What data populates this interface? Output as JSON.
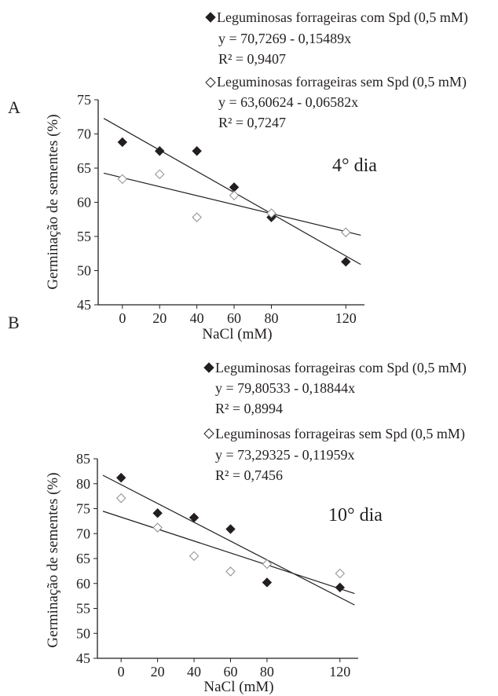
{
  "chart_data": [
    {
      "type": "scatter",
      "panel_label": "A",
      "annotation": "4° dia",
      "xlabel": "NaCl (mM)",
      "ylabel": "Germinação de sementes (%)",
      "x_ticks": [
        "0",
        "20",
        "40",
        "60",
        "80",
        "120"
      ],
      "y_ticks": [
        "45",
        "50",
        "55",
        "60",
        "65",
        "70",
        "75"
      ],
      "xlim": [
        -13,
        130
      ],
      "ylim": [
        45,
        75
      ],
      "grid": false,
      "legend_position": "top-right",
      "series": [
        {
          "name": "Leguminosas forrageiras com Spd (0,5 mM)",
          "marker": "filled-diamond",
          "equation": "y = 70,7269 - 0,15489x",
          "r2": "R² = 0,9407",
          "fit": {
            "intercept": 70.7269,
            "slope": -0.15489
          },
          "x": [
            0,
            20,
            40,
            60,
            80,
            120
          ],
          "y": [
            68.8,
            67.5,
            67.5,
            62.2,
            57.8,
            51.3
          ]
        },
        {
          "name": "Leguminosas forrageiras sem Spd (0,5 mM)",
          "marker": "open-diamond",
          "equation": "y = 63,60624 - 0,06582x",
          "r2": "R² = 0,7247",
          "fit": {
            "intercept": 63.60624,
            "slope": -0.06582
          },
          "x": [
            0,
            20,
            40,
            60,
            80,
            120
          ],
          "y": [
            63.4,
            64.1,
            57.8,
            61.0,
            58.4,
            55.6
          ]
        }
      ]
    },
    {
      "type": "scatter",
      "panel_label": "B",
      "annotation": "10° dia",
      "xlabel": "NaCl (mM)",
      "ylabel": "Germinação de sementes (%)",
      "x_ticks": [
        "0",
        "20",
        "40",
        "60",
        "80",
        "120"
      ],
      "y_ticks": [
        "45",
        "50",
        "55",
        "60",
        "65",
        "70",
        "75",
        "80",
        "85"
      ],
      "xlim": [
        -13,
        130
      ],
      "ylim": [
        45,
        85
      ],
      "grid": false,
      "legend_position": "top-right",
      "series": [
        {
          "name": "Leguminosas forrageiras com Spd (0,5 mM)",
          "marker": "filled-diamond",
          "equation": "y = 79,80533 - 0,18844x",
          "r2": "R² = 0,8994",
          "fit": {
            "intercept": 79.80533,
            "slope": -0.18844
          },
          "x": [
            0,
            20,
            40,
            60,
            80,
            120
          ],
          "y": [
            81.2,
            74.1,
            73.2,
            70.9,
            60.2,
            59.2
          ]
        },
        {
          "name": "Leguminosas forrageiras sem Spd (0,5 mM)",
          "marker": "open-diamond",
          "equation": "y = 73,29325 - 0,11959x",
          "r2": "R² = 0,7456",
          "fit": {
            "intercept": 73.29325,
            "slope": -0.11959
          },
          "x": [
            0,
            20,
            40,
            60,
            80,
            120
          ],
          "y": [
            77.1,
            71.2,
            65.5,
            62.4,
            63.9,
            62.0
          ]
        }
      ]
    }
  ]
}
